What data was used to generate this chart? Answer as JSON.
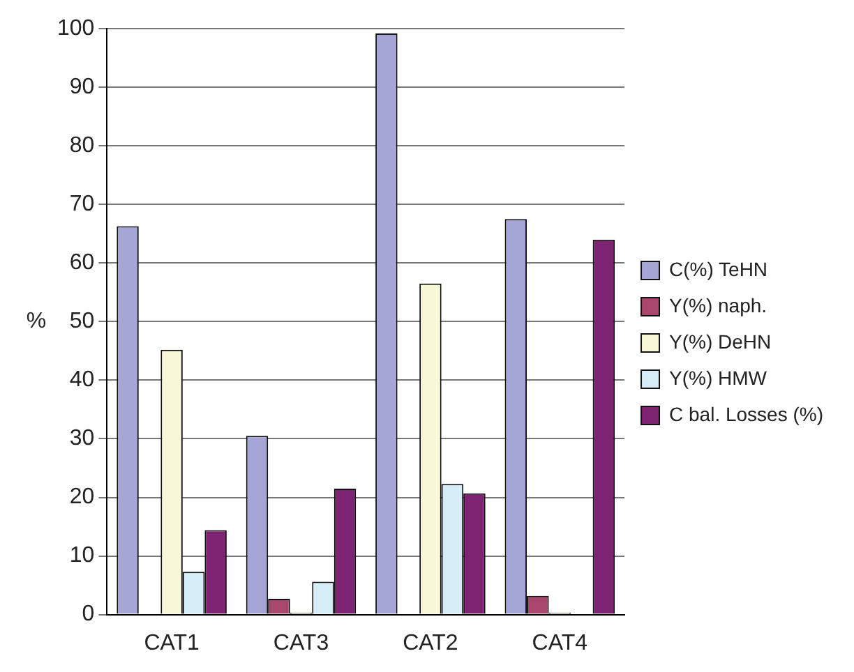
{
  "chart_data": {
    "type": "bar",
    "ylabel": "%",
    "categories": [
      "CAT1",
      "CAT3",
      "CAT2",
      "CAT4"
    ],
    "series": [
      {
        "name": "C(%) TeHN",
        "color": "#a6a6d6",
        "values": [
          66.3,
          30.5,
          99.2,
          67.5
        ]
      },
      {
        "name": "Y(%) naph.",
        "color": "#a8466e",
        "values": [
          0,
          2.7,
          0,
          3.2
        ]
      },
      {
        "name": "Y(%) DeHN",
        "color": "#f8f7d8",
        "values": [
          45.2,
          0.3,
          56.5,
          0.3
        ]
      },
      {
        "name": "Y(%) HMW",
        "color": "#d6ecf6",
        "values": [
          7.3,
          5.6,
          22.3,
          0
        ]
      },
      {
        "name": "C bal. Losses (%)",
        "color": "#7e2272",
        "values": [
          14.4,
          21.5,
          20.7,
          64
        ]
      }
    ],
    "ylim": [
      0,
      100
    ],
    "yticks": [
      0,
      10,
      20,
      30,
      40,
      50,
      60,
      70,
      80,
      90,
      100
    ],
    "grid": "y",
    "legend": "right"
  }
}
